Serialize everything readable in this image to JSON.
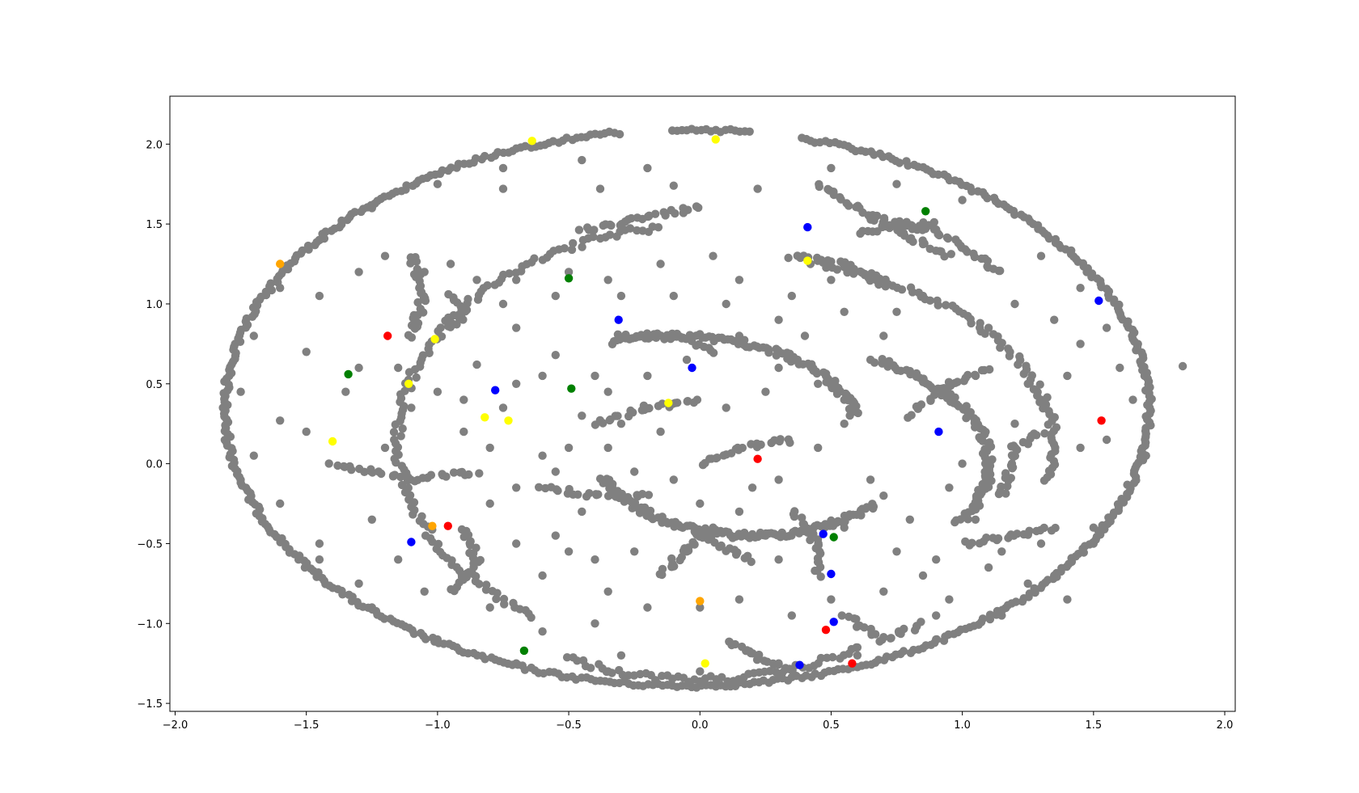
{
  "chart_data": {
    "type": "scatter",
    "title": "",
    "xlabel": "",
    "ylabel": "",
    "xlim": [
      -2.02,
      2.04
    ],
    "ylim": [
      -1.55,
      2.3
    ],
    "grid": false,
    "legend": "none",
    "xticks": [
      -2.0,
      -1.5,
      -1.0,
      -0.5,
      0.0,
      0.5,
      1.0,
      1.5,
      2.0
    ],
    "xtick_labels": [
      "−2.0",
      "−1.5",
      "−1.0",
      "−0.5",
      "0.0",
      "0.5",
      "1.0",
      "1.5",
      "2.0"
    ],
    "yticks": [
      -1.5,
      -1.0,
      -0.5,
      0.0,
      0.5,
      1.0,
      1.5,
      2.0
    ],
    "ytick_labels": [
      "−1.5",
      "−1.0",
      "−0.5",
      "0.0",
      "0.5",
      "1.0",
      "1.5",
      "2.0"
    ],
    "colors": {
      "gray": "#808080",
      "yellow": "#ffff00",
      "orange": "#ffa500",
      "green": "#008000",
      "blue": "#0000ff",
      "red": "#ff0000"
    },
    "outer_ring": {
      "color": "gray",
      "center": [
        -0.05,
        0.35
      ],
      "rx": 1.76,
      "ry": 1.74,
      "gaps_deg": [
        [
          76,
          82
        ],
        [
          92,
          98
        ]
      ]
    },
    "gray_arcs": [
      {
        "center": [
          0.05,
          0.15
        ],
        "rx": 1.2,
        "ry": 1.35,
        "start_deg": 100,
        "end_deg": 235
      },
      {
        "center": [
          0.1,
          0.1
        ],
        "rx": 1.25,
        "ry": 1.2,
        "start_deg": -10,
        "end_deg": 75
      },
      {
        "center": [
          0.25,
          0.0
        ],
        "rx": 0.85,
        "ry": 0.75,
        "start_deg": -30,
        "end_deg": 60
      },
      {
        "center": [
          -0.1,
          0.2
        ],
        "rx": 0.7,
        "ry": 0.6,
        "start_deg": 10,
        "end_deg": 110
      },
      {
        "center": [
          0.2,
          0.1
        ],
        "rx": 0.6,
        "ry": 0.55,
        "start_deg": 200,
        "end_deg": 320
      },
      {
        "center": [
          0.0,
          0.1
        ],
        "rx": 1.2,
        "ry": 1.45,
        "start_deg": 245,
        "end_deg": 300
      }
    ],
    "gray_segments": [
      [
        [
          -1.4,
          0.0
        ],
        [
          -1.1,
          -0.1
        ],
        [
          -0.85,
          -0.05
        ]
      ],
      [
        [
          -1.1,
          0.8
        ],
        [
          -1.05,
          1.05
        ],
        [
          -1.1,
          1.3
        ]
      ],
      [
        [
          -0.45,
          1.45
        ],
        [
          -0.2,
          1.55
        ],
        [
          0.0,
          1.6
        ]
      ],
      [
        [
          0.35,
          1.3
        ],
        [
          0.55,
          1.25
        ],
        [
          0.7,
          1.1
        ]
      ],
      [
        [
          0.65,
          1.55
        ],
        [
          0.9,
          1.45
        ],
        [
          1.15,
          1.2
        ]
      ],
      [
        [
          0.45,
          1.75
        ],
        [
          0.7,
          1.5
        ],
        [
          0.95,
          1.3
        ]
      ],
      [
        [
          -0.6,
          -0.15
        ],
        [
          -0.4,
          -0.2
        ],
        [
          -0.2,
          -0.2
        ]
      ],
      [
        [
          -0.15,
          -0.7
        ],
        [
          0.0,
          -0.45
        ],
        [
          0.2,
          -0.6
        ]
      ],
      [
        [
          0.1,
          -1.1
        ],
        [
          0.2,
          -1.2
        ],
        [
          0.35,
          -1.3
        ]
      ],
      [
        [
          -0.4,
          0.25
        ],
        [
          -0.2,
          0.35
        ],
        [
          0.0,
          0.4
        ]
      ],
      [
        [
          0.0,
          0.0
        ],
        [
          0.15,
          0.1
        ],
        [
          0.35,
          0.15
        ]
      ],
      [
        [
          0.35,
          -0.3
        ],
        [
          0.45,
          -0.5
        ],
        [
          0.45,
          -0.7
        ]
      ],
      [
        [
          1.0,
          -0.5
        ],
        [
          1.2,
          -0.45
        ],
        [
          1.35,
          -0.4
        ]
      ],
      [
        [
          0.8,
          0.3
        ],
        [
          0.95,
          0.5
        ],
        [
          1.1,
          0.6
        ]
      ],
      [
        [
          -0.95,
          0.85
        ],
        [
          -0.9,
          0.95
        ],
        [
          -0.95,
          1.05
        ]
      ],
      [
        [
          0.6,
          1.45
        ],
        [
          0.8,
          1.5
        ],
        [
          0.9,
          1.5
        ]
      ],
      [
        [
          -0.3,
          0.8
        ],
        [
          -0.1,
          0.8
        ],
        [
          0.05,
          0.7
        ]
      ],
      [
        [
          -0.9,
          -0.4
        ],
        [
          -0.85,
          -0.6
        ],
        [
          -0.95,
          -0.8
        ]
      ],
      [
        [
          0.55,
          -0.95
        ],
        [
          0.7,
          -1.1
        ],
        [
          0.85,
          -1.0
        ]
      ],
      [
        [
          1.15,
          -0.2
        ],
        [
          1.2,
          0.1
        ],
        [
          1.3,
          0.2
        ]
      ]
    ],
    "gray_scatter": [
      [
        1.84,
        0.61
      ],
      [
        -0.75,
        1.72
      ],
      [
        -0.38,
        1.72
      ],
      [
        -0.1,
        1.74
      ],
      [
        0.22,
        1.72
      ],
      [
        -1.6,
        0.27
      ],
      [
        -1.5,
        0.2
      ],
      [
        -0.85,
        0.62
      ],
      [
        -0.7,
        0.5
      ],
      [
        -0.6,
        0.55
      ],
      [
        -0.55,
        0.68
      ],
      [
        -0.4,
        0.55
      ],
      [
        -0.45,
        0.3
      ],
      [
        -0.5,
        0.1
      ],
      [
        -0.6,
        0.05
      ],
      [
        -0.35,
        0.1
      ],
      [
        -0.3,
        0.25
      ],
      [
        -0.15,
        0.2
      ],
      [
        0.1,
        0.35
      ],
      [
        0.25,
        0.45
      ],
      [
        0.3,
        0.6
      ],
      [
        0.45,
        0.5
      ],
      [
        0.55,
        0.4
      ],
      [
        -1.15,
        0.6
      ],
      [
        -1.0,
        0.45
      ],
      [
        -0.9,
        0.4
      ],
      [
        -0.75,
        0.35
      ],
      [
        -0.55,
        -0.05
      ],
      [
        -0.45,
        -0.3
      ],
      [
        -0.7,
        -0.5
      ],
      [
        -0.6,
        -0.7
      ],
      [
        -0.5,
        -0.55
      ],
      [
        -0.35,
        -0.8
      ],
      [
        0.0,
        -0.25
      ],
      [
        0.05,
        -0.4
      ],
      [
        0.15,
        -0.3
      ],
      [
        0.25,
        -0.45
      ],
      [
        0.7,
        -0.2
      ],
      [
        0.65,
        -0.1
      ],
      [
        0.8,
        -0.35
      ],
      [
        0.95,
        -0.15
      ],
      [
        1.0,
        0.0
      ],
      [
        0.9,
        -0.6
      ],
      [
        0.85,
        -0.7
      ],
      [
        1.25,
        -0.75
      ],
      [
        1.4,
        -0.85
      ],
      [
        1.1,
        -0.65
      ],
      [
        1.2,
        0.25
      ],
      [
        1.3,
        0.4
      ],
      [
        1.4,
        0.55
      ],
      [
        1.25,
        0.5
      ],
      [
        1.45,
        0.75
      ],
      [
        1.35,
        0.9
      ],
      [
        1.1,
        0.85
      ],
      [
        1.2,
        1.0
      ],
      [
        0.75,
        0.95
      ],
      [
        0.85,
        1.05
      ],
      [
        0.7,
        0.8
      ],
      [
        0.55,
        0.95
      ],
      [
        0.15,
        1.15
      ],
      [
        0.05,
        1.3
      ],
      [
        -0.15,
        1.25
      ],
      [
        -0.35,
        1.15
      ],
      [
        -0.55,
        1.05
      ],
      [
        -0.75,
        1.0
      ],
      [
        -0.7,
        0.85
      ],
      [
        -1.3,
        0.6
      ],
      [
        -1.35,
        0.45
      ],
      [
        -1.1,
        0.35
      ],
      [
        -1.2,
        0.1
      ],
      [
        -1.25,
        -0.35
      ],
      [
        -1.15,
        -0.6
      ],
      [
        -1.05,
        -0.8
      ],
      [
        -1.3,
        -0.75
      ],
      [
        -1.45,
        -0.6
      ],
      [
        -0.8,
        -0.9
      ],
      [
        -0.6,
        -1.05
      ],
      [
        -0.4,
        -1.0
      ],
      [
        -0.3,
        -1.2
      ],
      [
        -0.2,
        -0.9
      ],
      [
        0.0,
        -0.9
      ],
      [
        0.15,
        -0.85
      ],
      [
        0.35,
        -0.95
      ],
      [
        0.5,
        -0.85
      ],
      [
        0.6,
        -1.15
      ],
      [
        0.7,
        -0.8
      ],
      [
        0.95,
        -0.85
      ],
      [
        0.9,
        -0.95
      ],
      [
        0.3,
        0.9
      ],
      [
        0.4,
        0.8
      ],
      [
        0.15,
        0.8
      ],
      [
        -0.05,
        0.65
      ],
      [
        -0.2,
        0.55
      ],
      [
        -0.35,
        0.45
      ],
      [
        -0.9,
        0.2
      ],
      [
        -0.8,
        0.1
      ],
      [
        -1.5,
        0.7
      ],
      [
        -1.45,
        1.05
      ],
      [
        -1.3,
        1.2
      ],
      [
        -1.2,
        1.3
      ],
      [
        -1.05,
        1.2
      ],
      [
        -0.95,
        1.25
      ],
      [
        -0.85,
        1.15
      ],
      [
        -0.7,
        1.15
      ],
      [
        -0.5,
        1.2
      ],
      [
        -0.3,
        1.05
      ],
      [
        -0.1,
        1.05
      ],
      [
        0.1,
        1.0
      ],
      [
        0.35,
        1.05
      ],
      [
        0.5,
        1.15
      ],
      [
        0.65,
        0.65
      ],
      [
        0.55,
        0.25
      ],
      [
        0.45,
        0.1
      ],
      [
        0.3,
        -0.1
      ],
      [
        0.2,
        -0.15
      ],
      [
        -0.1,
        -0.1
      ],
      [
        -0.25,
        -0.05
      ],
      [
        -0.8,
        -0.25
      ],
      [
        -0.7,
        -0.15
      ],
      [
        -0.55,
        -0.45
      ],
      [
        -0.4,
        -0.6
      ],
      [
        -0.25,
        -0.55
      ],
      [
        -0.05,
        -0.55
      ],
      [
        0.3,
        -0.6
      ],
      [
        0.55,
        -0.4
      ],
      [
        0.75,
        -0.55
      ],
      [
        1.05,
        -0.35
      ],
      [
        1.15,
        -0.55
      ],
      [
        1.3,
        -0.5
      ],
      [
        1.5,
        -0.4
      ],
      [
        1.6,
        -0.25
      ],
      [
        1.45,
        0.1
      ],
      [
        1.55,
        0.15
      ],
      [
        1.65,
        0.4
      ],
      [
        1.7,
        0.05
      ],
      [
        1.6,
        0.6
      ],
      [
        1.55,
        0.85
      ],
      [
        1.45,
        1.1
      ],
      [
        1.3,
        1.3
      ],
      [
        1.0,
        1.65
      ],
      [
        0.75,
        1.75
      ],
      [
        0.5,
        1.85
      ],
      [
        -0.2,
        1.85
      ],
      [
        -0.45,
        1.9
      ],
      [
        -0.75,
        1.85
      ],
      [
        -1.0,
        1.75
      ],
      [
        -1.25,
        1.6
      ],
      [
        -1.45,
        1.4
      ],
      [
        -1.6,
        1.1
      ],
      [
        -1.7,
        0.8
      ],
      [
        -1.75,
        0.45
      ],
      [
        -1.7,
        0.05
      ],
      [
        -1.6,
        -0.25
      ],
      [
        -1.45,
        -0.5
      ],
      [
        -1.25,
        -0.9
      ],
      [
        -1.0,
        -1.1
      ],
      [
        -0.7,
        -1.25
      ],
      [
        -0.35,
        -1.3
      ],
      [
        0.0,
        -1.3
      ],
      [
        0.3,
        -1.25
      ],
      [
        0.6,
        -1.2
      ],
      [
        0.9,
        -1.1
      ],
      [
        1.15,
        -0.95
      ],
      [
        1.35,
        -0.7
      ],
      [
        1.5,
        -0.5
      ]
    ],
    "colored_points": [
      {
        "color": "yellow",
        "x": -0.64,
        "y": 2.02
      },
      {
        "color": "yellow",
        "x": 0.06,
        "y": 2.03
      },
      {
        "color": "yellow",
        "x": -1.11,
        "y": 0.5
      },
      {
        "color": "yellow",
        "x": -1.4,
        "y": 0.14
      },
      {
        "color": "yellow",
        "x": -0.82,
        "y": 0.29
      },
      {
        "color": "yellow",
        "x": -0.73,
        "y": 0.27
      },
      {
        "color": "yellow",
        "x": -1.01,
        "y": 0.78
      },
      {
        "color": "yellow",
        "x": -0.12,
        "y": 0.38
      },
      {
        "color": "yellow",
        "x": 0.02,
        "y": -1.25
      },
      {
        "color": "yellow",
        "x": 0.41,
        "y": 1.27
      },
      {
        "color": "orange",
        "x": -1.6,
        "y": 1.25
      },
      {
        "color": "orange",
        "x": 0.0,
        "y": -0.86
      },
      {
        "color": "orange",
        "x": -1.02,
        "y": -0.39
      },
      {
        "color": "green",
        "x": 0.86,
        "y": 1.58
      },
      {
        "color": "green",
        "x": -0.5,
        "y": 1.16
      },
      {
        "color": "green",
        "x": -0.49,
        "y": 0.47
      },
      {
        "color": "green",
        "x": -0.67,
        "y": -1.17
      },
      {
        "color": "green",
        "x": 0.51,
        "y": -0.46
      },
      {
        "color": "green",
        "x": -1.34,
        "y": 0.56
      },
      {
        "color": "blue",
        "x": 0.41,
        "y": 1.48
      },
      {
        "color": "blue",
        "x": 1.52,
        "y": 1.02
      },
      {
        "color": "blue",
        "x": -0.31,
        "y": 0.9
      },
      {
        "color": "blue",
        "x": 0.91,
        "y": 0.2
      },
      {
        "color": "blue",
        "x": -1.1,
        "y": -0.49
      },
      {
        "color": "blue",
        "x": 0.5,
        "y": -0.69
      },
      {
        "color": "blue",
        "x": 0.51,
        "y": -0.99
      },
      {
        "color": "blue",
        "x": 0.47,
        "y": -0.44
      },
      {
        "color": "blue",
        "x": 0.38,
        "y": -1.26
      },
      {
        "color": "blue",
        "x": -0.78,
        "y": 0.46
      },
      {
        "color": "blue",
        "x": -0.03,
        "y": 0.6
      },
      {
        "color": "red",
        "x": 0.22,
        "y": 0.03
      },
      {
        "color": "red",
        "x": 0.58,
        "y": -1.25
      },
      {
        "color": "red",
        "x": 0.48,
        "y": -1.04
      },
      {
        "color": "red",
        "x": 1.53,
        "y": 0.27
      },
      {
        "color": "red",
        "x": -0.96,
        "y": -0.39
      },
      {
        "color": "red",
        "x": -1.19,
        "y": 0.8
      }
    ]
  }
}
